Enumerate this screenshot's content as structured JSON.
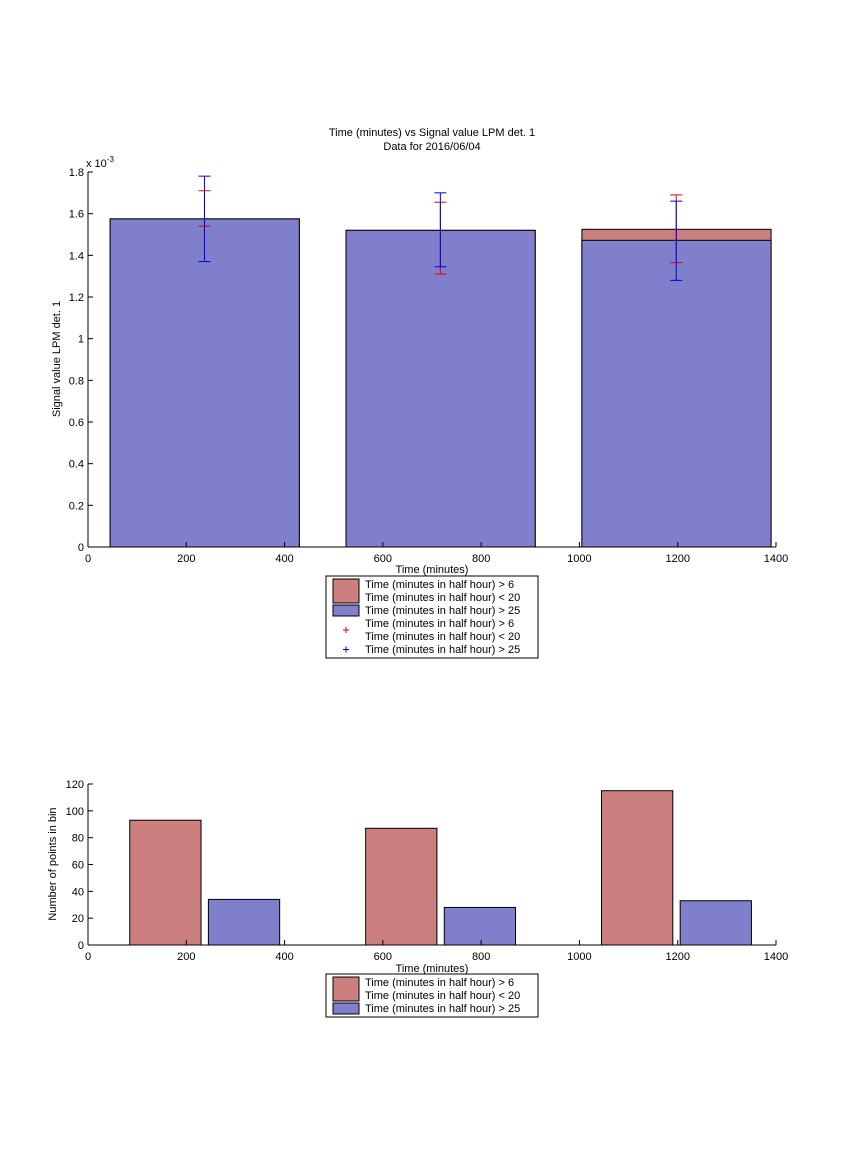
{
  "colors": {
    "red_fill": "#cc7f7f",
    "blue_fill": "#7f7fcc",
    "red_err": "#e00000",
    "blue_err": "#0000dd",
    "axis": "#000000"
  },
  "chart_data": [
    {
      "type": "bar",
      "title": "Time (minutes) vs Signal value LPM det. 1",
      "subtitle": "Data for 2016/06/04",
      "xlabel": "Time (minutes)",
      "ylabel": "Signal value LPM det. 1",
      "exponent_label": "x 10",
      "exponent_sup": "-3",
      "xlim": [
        0,
        1400
      ],
      "ylim": [
        0,
        1.8
      ],
      "xticks": [
        "0",
        "200",
        "400",
        "600",
        "800",
        "1000",
        "1200",
        "1400"
      ],
      "yticks": [
        "0",
        "0.2",
        "0.4",
        "0.6",
        "0.8",
        "1",
        "1.2",
        "1.4",
        "1.6",
        "1.8"
      ],
      "overlay": true,
      "bars": [
        {
          "x0": 45,
          "x1": 430,
          "red": 1.575,
          "blue": 1.575
        },
        {
          "x0": 525,
          "x1": 910,
          "red": 1.52,
          "blue": 1.52
        },
        {
          "x0": 1005,
          "x1": 1390,
          "red": 1.525,
          "blue": 1.472
        }
      ],
      "errorbars": [
        {
          "series": "red",
          "x": 237,
          "low": 1.54,
          "high": 1.71
        },
        {
          "series": "blue",
          "x": 237,
          "low": 1.37,
          "high": 1.78
        },
        {
          "series": "red",
          "x": 717,
          "low": 1.31,
          "high": 1.655
        },
        {
          "series": "blue",
          "x": 717,
          "low": 1.345,
          "high": 1.7
        },
        {
          "series": "red",
          "x": 1197,
          "low": 1.365,
          "high": 1.69
        },
        {
          "series": "blue",
          "x": 1197,
          "low": 1.28,
          "high": 1.66
        }
      ],
      "legend": [
        {
          "kind": "patch",
          "series": "red",
          "lines": [
            "Time (minutes in half hour) > 6",
            "Time (minutes in half hour) < 20"
          ]
        },
        {
          "kind": "patch",
          "series": "blue",
          "lines": [
            "Time (minutes in half hour) > 25"
          ]
        },
        {
          "kind": "marker",
          "series": "red",
          "lines": [
            "Time (minutes in half hour) > 6",
            "Time (minutes in half hour) < 20"
          ]
        },
        {
          "kind": "marker",
          "series": "blue",
          "lines": [
            "Time (minutes in half hour) > 25"
          ]
        }
      ],
      "legend_placement": "below-axes"
    },
    {
      "type": "bar",
      "xlabel": "Time (minutes)",
      "ylabel": "Number of points in bin",
      "xlim": [
        0,
        1400
      ],
      "ylim": [
        0,
        120
      ],
      "xticks": [
        "0",
        "200",
        "400",
        "600",
        "800",
        "1000",
        "1200",
        "1400"
      ],
      "yticks": [
        "0",
        "20",
        "40",
        "60",
        "80",
        "100",
        "120"
      ],
      "bars": [
        {
          "series": "red",
          "x0": 85,
          "x1": 230,
          "value": 93
        },
        {
          "series": "blue",
          "x0": 245,
          "x1": 390,
          "value": 34
        },
        {
          "series": "red",
          "x0": 565,
          "x1": 710,
          "value": 87
        },
        {
          "series": "blue",
          "x0": 725,
          "x1": 870,
          "value": 28
        },
        {
          "series": "red",
          "x0": 1045,
          "x1": 1190,
          "value": 115
        },
        {
          "series": "blue",
          "x0": 1205,
          "x1": 1350,
          "value": 33
        }
      ],
      "legend": [
        {
          "kind": "patch",
          "series": "red",
          "lines": [
            "Time (minutes in half hour) > 6",
            "Time (minutes in half hour) < 20"
          ]
        },
        {
          "kind": "patch",
          "series": "blue",
          "lines": [
            "Time (minutes in half hour) > 25"
          ]
        }
      ],
      "legend_placement": "below-axes"
    }
  ]
}
